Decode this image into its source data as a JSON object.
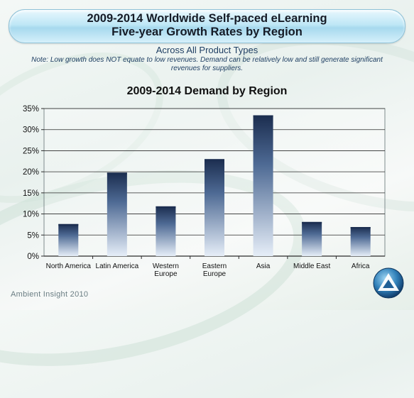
{
  "header": {
    "title_line1": "2009-2014 Worldwide Self-paced eLearning",
    "title_line2": "Five-year Growth Rates by Region",
    "subtitle": "Across  All Product Types",
    "note": "Note: Low growth does NOT equate to low revenues. Demand can be relatively low and still generate significant revenues for suppliers."
  },
  "footer": {
    "credit": "Ambient Insight 2010"
  },
  "chart_data": {
    "type": "bar",
    "title": "2009-2014 Demand by Region",
    "categories": [
      [
        "North America"
      ],
      [
        "Latin America"
      ],
      [
        "Western",
        "Europe"
      ],
      [
        "Eastern",
        "Europe"
      ],
      [
        "Asia"
      ],
      [
        "Middle East"
      ],
      [
        "Africa"
      ]
    ],
    "values": [
      7.6,
      19.8,
      11.8,
      23.0,
      33.4,
      8.1,
      6.9
    ],
    "value_unit": "%",
    "ylim": [
      0,
      35
    ],
    "yticks": [
      "0%",
      "5%",
      "10%",
      "15%",
      "20%",
      "25%",
      "30%",
      "35%"
    ],
    "grid": true,
    "legend": "none",
    "bar_color_top": "#1b2d4f",
    "bar_color_bottom": "#e6eef8"
  },
  "colors": {
    "banner": "#bfe7f6",
    "title_text": "#151b26",
    "subtitle_text": "#1f3f63"
  },
  "icons": {
    "logo": "triangle-logo-icon"
  }
}
